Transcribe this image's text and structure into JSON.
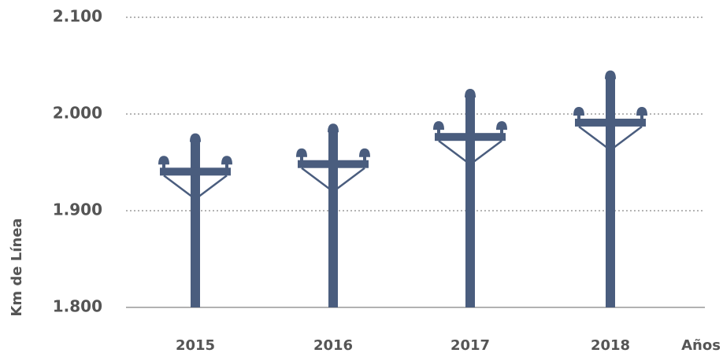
{
  "chart_data": {
    "type": "pictograph",
    "categories": [
      "2015",
      "2016",
      "2017",
      "2018"
    ],
    "values": [
      1980,
      1990,
      2026,
      2045
    ],
    "color": "#4a5d7e",
    "ylabel": "Km de Línea",
    "xlabel": "Años",
    "ylim": [
      1800,
      2100
    ],
    "yticks": [
      {
        "value": 1800,
        "label": "1.800"
      },
      {
        "value": 1900,
        "label": "1.900"
      },
      {
        "value": 2000,
        "label": "2.000"
      },
      {
        "value": 2100,
        "label": "2.100"
      }
    ],
    "grid": true
  }
}
